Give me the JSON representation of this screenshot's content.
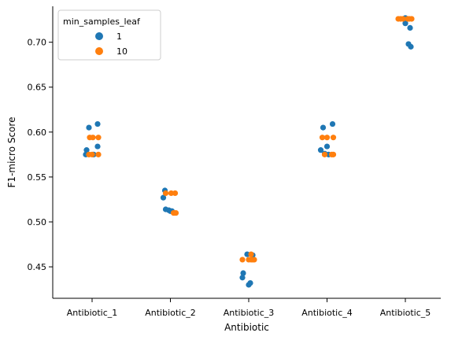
{
  "chart_data": {
    "type": "scatter",
    "xlabel": "Antibiotic",
    "ylabel": "F1-micro Score",
    "categories": [
      "Antibiotic_1",
      "Antibiotic_2",
      "Antibiotic_3",
      "Antibiotic_4",
      "Antibiotic_5"
    ],
    "ylim": [
      0.415,
      0.74
    ],
    "yticks": [
      0.45,
      0.5,
      0.55,
      0.6,
      0.65,
      0.7
    ],
    "ytick_labels": [
      "0.45",
      "0.50",
      "0.55",
      "0.60",
      "0.65",
      "0.70"
    ],
    "grid": false,
    "legend": {
      "title": "min_samples_leaf",
      "placement": "top-left"
    },
    "series": [
      {
        "name": "1",
        "color": "#1f77b4",
        "points": [
          {
            "x": "Antibiotic_1",
            "offset": -0.08,
            "y": 0.575
          },
          {
            "x": "Antibiotic_1",
            "offset": -0.07,
            "y": 0.58
          },
          {
            "x": "Antibiotic_1",
            "offset": -0.04,
            "y": 0.605
          },
          {
            "x": "Antibiotic_1",
            "offset": 0.02,
            "y": 0.575
          },
          {
            "x": "Antibiotic_1",
            "offset": 0.07,
            "y": 0.584
          },
          {
            "x": "Antibiotic_1",
            "offset": 0.07,
            "y": 0.609
          },
          {
            "x": "Antibiotic_2",
            "offset": -0.09,
            "y": 0.527
          },
          {
            "x": "Antibiotic_2",
            "offset": -0.07,
            "y": 0.535
          },
          {
            "x": "Antibiotic_2",
            "offset": -0.06,
            "y": 0.514
          },
          {
            "x": "Antibiotic_2",
            "offset": -0.02,
            "y": 0.513
          },
          {
            "x": "Antibiotic_2",
            "offset": 0.0,
            "y": 0.512
          },
          {
            "x": "Antibiotic_2",
            "offset": 0.02,
            "y": 0.512
          },
          {
            "x": "Antibiotic_3",
            "offset": -0.08,
            "y": 0.438
          },
          {
            "x": "Antibiotic_3",
            "offset": -0.07,
            "y": 0.443
          },
          {
            "x": "Antibiotic_3",
            "offset": -0.02,
            "y": 0.464
          },
          {
            "x": "Antibiotic_3",
            "offset": 0.0,
            "y": 0.43
          },
          {
            "x": "Antibiotic_3",
            "offset": 0.02,
            "y": 0.432
          },
          {
            "x": "Antibiotic_3",
            "offset": 0.05,
            "y": 0.463
          },
          {
            "x": "Antibiotic_4",
            "offset": -0.08,
            "y": 0.58
          },
          {
            "x": "Antibiotic_4",
            "offset": -0.05,
            "y": 0.605
          },
          {
            "x": "Antibiotic_4",
            "offset": -0.03,
            "y": 0.576
          },
          {
            "x": "Antibiotic_4",
            "offset": 0.0,
            "y": 0.584
          },
          {
            "x": "Antibiotic_4",
            "offset": 0.02,
            "y": 0.575
          },
          {
            "x": "Antibiotic_4",
            "offset": 0.07,
            "y": 0.609
          },
          {
            "x": "Antibiotic_5",
            "offset": 0.0,
            "y": 0.725
          },
          {
            "x": "Antibiotic_5",
            "offset": 0.0,
            "y": 0.721
          },
          {
            "x": "Antibiotic_5",
            "offset": 0.04,
            "y": 0.698
          },
          {
            "x": "Antibiotic_5",
            "offset": 0.06,
            "y": 0.716
          },
          {
            "x": "Antibiotic_5",
            "offset": 0.07,
            "y": 0.695
          },
          {
            "x": "Antibiotic_5",
            "offset": 0.0,
            "y": 0.727
          }
        ]
      },
      {
        "name": "10",
        "color": "#ff7f0e",
        "points": [
          {
            "x": "Antibiotic_1",
            "offset": -0.04,
            "y": 0.575
          },
          {
            "x": "Antibiotic_1",
            "offset": -0.03,
            "y": 0.594
          },
          {
            "x": "Antibiotic_1",
            "offset": 0.0,
            "y": 0.575
          },
          {
            "x": "Antibiotic_1",
            "offset": 0.01,
            "y": 0.594
          },
          {
            "x": "Antibiotic_1",
            "offset": 0.08,
            "y": 0.594
          },
          {
            "x": "Antibiotic_1",
            "offset": 0.08,
            "y": 0.575
          },
          {
            "x": "Antibiotic_2",
            "offset": -0.06,
            "y": 0.532
          },
          {
            "x": "Antibiotic_2",
            "offset": 0.01,
            "y": 0.532
          },
          {
            "x": "Antibiotic_2",
            "offset": 0.06,
            "y": 0.532
          },
          {
            "x": "Antibiotic_2",
            "offset": 0.04,
            "y": 0.51
          },
          {
            "x": "Antibiotic_2",
            "offset": 0.05,
            "y": 0.51
          },
          {
            "x": "Antibiotic_2",
            "offset": 0.07,
            "y": 0.51
          },
          {
            "x": "Antibiotic_3",
            "offset": -0.08,
            "y": 0.458
          },
          {
            "x": "Antibiotic_3",
            "offset": 0.0,
            "y": 0.458
          },
          {
            "x": "Antibiotic_3",
            "offset": 0.03,
            "y": 0.458
          },
          {
            "x": "Antibiotic_3",
            "offset": 0.03,
            "y": 0.464
          },
          {
            "x": "Antibiotic_3",
            "offset": 0.05,
            "y": 0.458
          },
          {
            "x": "Antibiotic_3",
            "offset": 0.07,
            "y": 0.458
          },
          {
            "x": "Antibiotic_4",
            "offset": -0.06,
            "y": 0.594
          },
          {
            "x": "Antibiotic_4",
            "offset": -0.03,
            "y": 0.575
          },
          {
            "x": "Antibiotic_4",
            "offset": 0.0,
            "y": 0.594
          },
          {
            "x": "Antibiotic_4",
            "offset": 0.06,
            "y": 0.575
          },
          {
            "x": "Antibiotic_4",
            "offset": 0.08,
            "y": 0.575
          },
          {
            "x": "Antibiotic_4",
            "offset": 0.08,
            "y": 0.594
          },
          {
            "x": "Antibiotic_5",
            "offset": -0.09,
            "y": 0.726
          },
          {
            "x": "Antibiotic_5",
            "offset": -0.06,
            "y": 0.726
          },
          {
            "x": "Antibiotic_5",
            "offset": -0.03,
            "y": 0.726
          },
          {
            "x": "Antibiotic_5",
            "offset": 0.03,
            "y": 0.726
          },
          {
            "x": "Antibiotic_5",
            "offset": 0.05,
            "y": 0.726
          },
          {
            "x": "Antibiotic_5",
            "offset": 0.08,
            "y": 0.726
          }
        ]
      }
    ]
  }
}
